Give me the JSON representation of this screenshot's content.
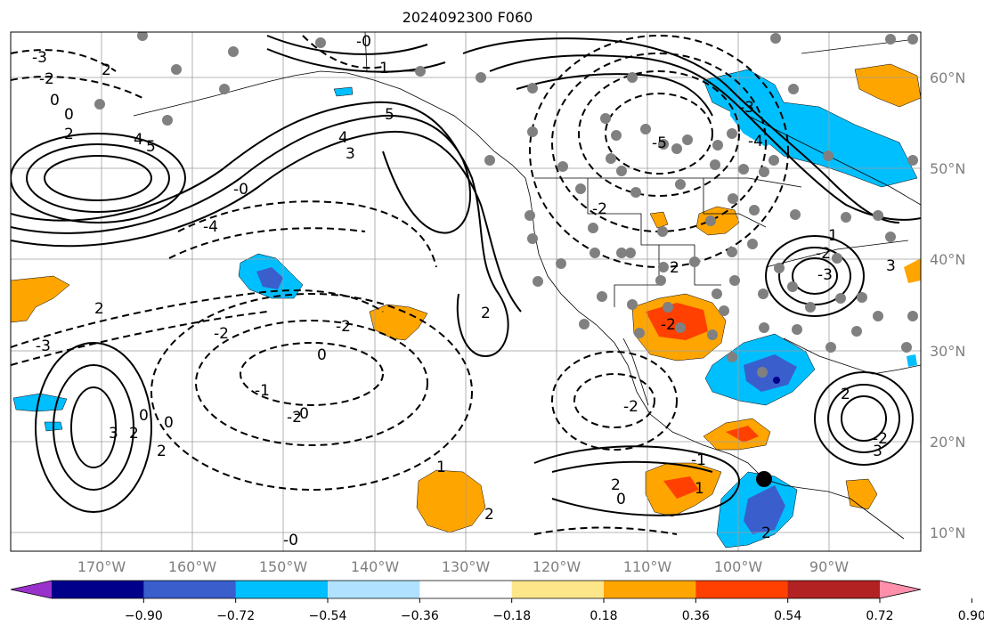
{
  "title": "2024092300 F060",
  "lat_labels": [
    "60°N",
    "50°N",
    "40°N",
    "30°N",
    "20°N",
    "10°N"
  ],
  "lon_labels": [
    "170°W",
    "160°W",
    "150°W",
    "140°W",
    "130°W",
    "120°W",
    "110°W",
    "100°W",
    "90°W"
  ],
  "colorbar": {
    "colors": [
      "#9932cc",
      "#00008b",
      "#3a5fcd",
      "#00bfff",
      "#b0e2ff",
      "#ffffff",
      "#fde68a",
      "#ffa500",
      "#ff4000",
      "#b22222",
      "#ff8fab"
    ],
    "tick_labels": [
      "−0.90",
      "−0.72",
      "−0.54",
      "−0.36",
      "−0.18",
      "0.18",
      "0.36",
      "0.54",
      "0.72",
      "0.90"
    ]
  },
  "contour_labels": [
    "-3",
    "2",
    "-2",
    "0",
    "0",
    "2",
    "4",
    "5",
    "5",
    "4",
    "3",
    "-0",
    "-4",
    "-0",
    "1",
    "-3",
    "2",
    "-2",
    "0",
    "-2",
    "-0",
    "-1",
    "-2",
    "3",
    "2",
    "0",
    "0",
    "2",
    "1",
    "2",
    "2",
    "0",
    "-1",
    "1",
    "2",
    "-5",
    "-4",
    "-3",
    "-3",
    "-2",
    "1",
    "-2",
    "2",
    "-2",
    "3",
    "2",
    "-2",
    "-3",
    "2",
    "-0",
    "-2"
  ]
}
